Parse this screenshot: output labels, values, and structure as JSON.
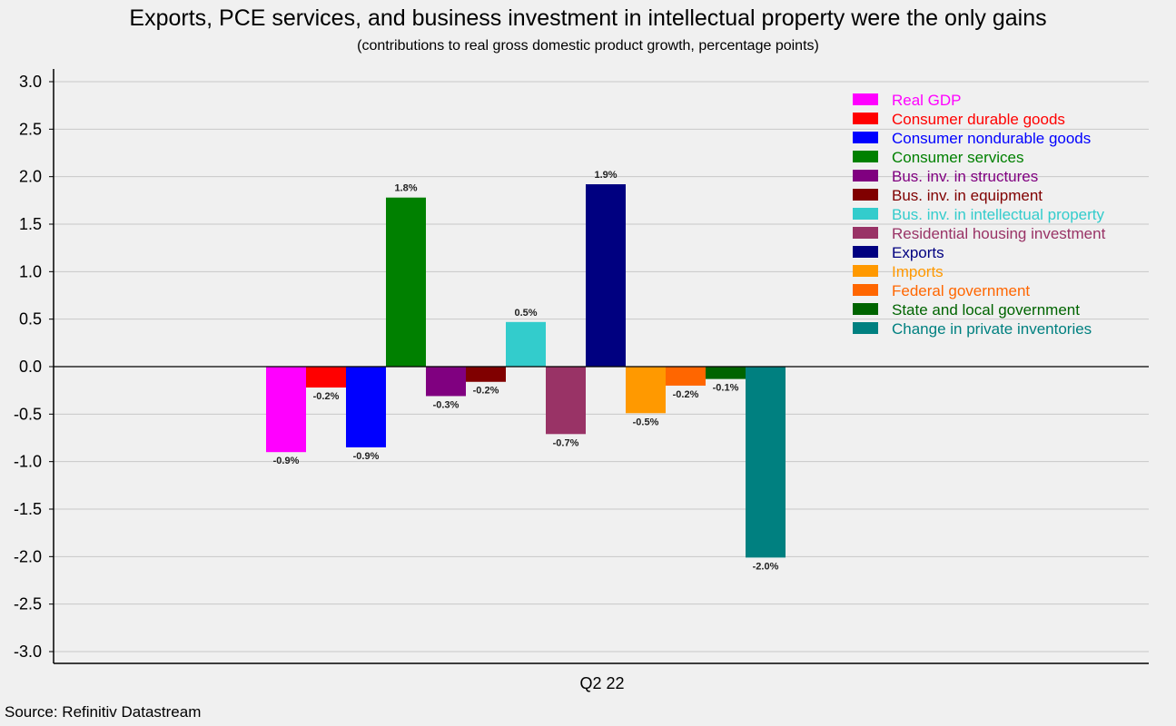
{
  "chart_data": {
    "type": "bar",
    "title": "Exports, PCE services, and business investment in intellectual property were the only gains",
    "subtitle": "(contributions to real gross domestic product growth, percentage points)",
    "categories": [
      "Q2 22"
    ],
    "ylim": [
      -3.0,
      3.0
    ],
    "yticks": [
      "3.0",
      "2.5",
      "2.0",
      "1.5",
      "1.0",
      "0.5",
      "0.0",
      "-0.5",
      "-1.0",
      "-1.5",
      "-2.0",
      "-2.5",
      "-3.0"
    ],
    "grid": true,
    "legend_position": "top-right",
    "series": [
      {
        "name": "Real GDP",
        "value": -0.9,
        "label": "-0.9%",
        "color": "#ff00ff"
      },
      {
        "name": "Consumer durable goods",
        "value": -0.22,
        "label": "-0.2%",
        "color": "#ff0000"
      },
      {
        "name": "Consumer nondurable goods",
        "value": -0.85,
        "label": "-0.9%",
        "color": "#0000ff"
      },
      {
        "name": "Consumer services",
        "value": 1.78,
        "label": "1.8%",
        "color": "#008000"
      },
      {
        "name": "Bus. inv. in structures",
        "value": -0.31,
        "label": "-0.3%",
        "color": "#800080"
      },
      {
        "name": "Bus. inv. in equipment",
        "value": -0.16,
        "label": "-0.2%",
        "color": "#800000"
      },
      {
        "name": "Bus. inv. in intellectual property",
        "value": 0.47,
        "label": "0.5%",
        "color": "#33cccc"
      },
      {
        "name": "Residential housing investment",
        "value": -0.71,
        "label": "-0.7%",
        "color": "#993366"
      },
      {
        "name": "Exports",
        "value": 1.92,
        "label": "1.9%",
        "color": "#000080"
      },
      {
        "name": "Imports",
        "value": -0.49,
        "label": "-0.5%",
        "color": "#ff9900"
      },
      {
        "name": "Federal government",
        "value": -0.2,
        "label": "-0.2%",
        "color": "#ff6600"
      },
      {
        "name": "State and local government",
        "value": -0.13,
        "label": "-0.1%",
        "color": "#006400"
      },
      {
        "name": "Change in private inventories",
        "value": -2.01,
        "label": "-2.0%",
        "color": "#008080"
      }
    ]
  },
  "source": "Source: Refinitiv Datastream"
}
